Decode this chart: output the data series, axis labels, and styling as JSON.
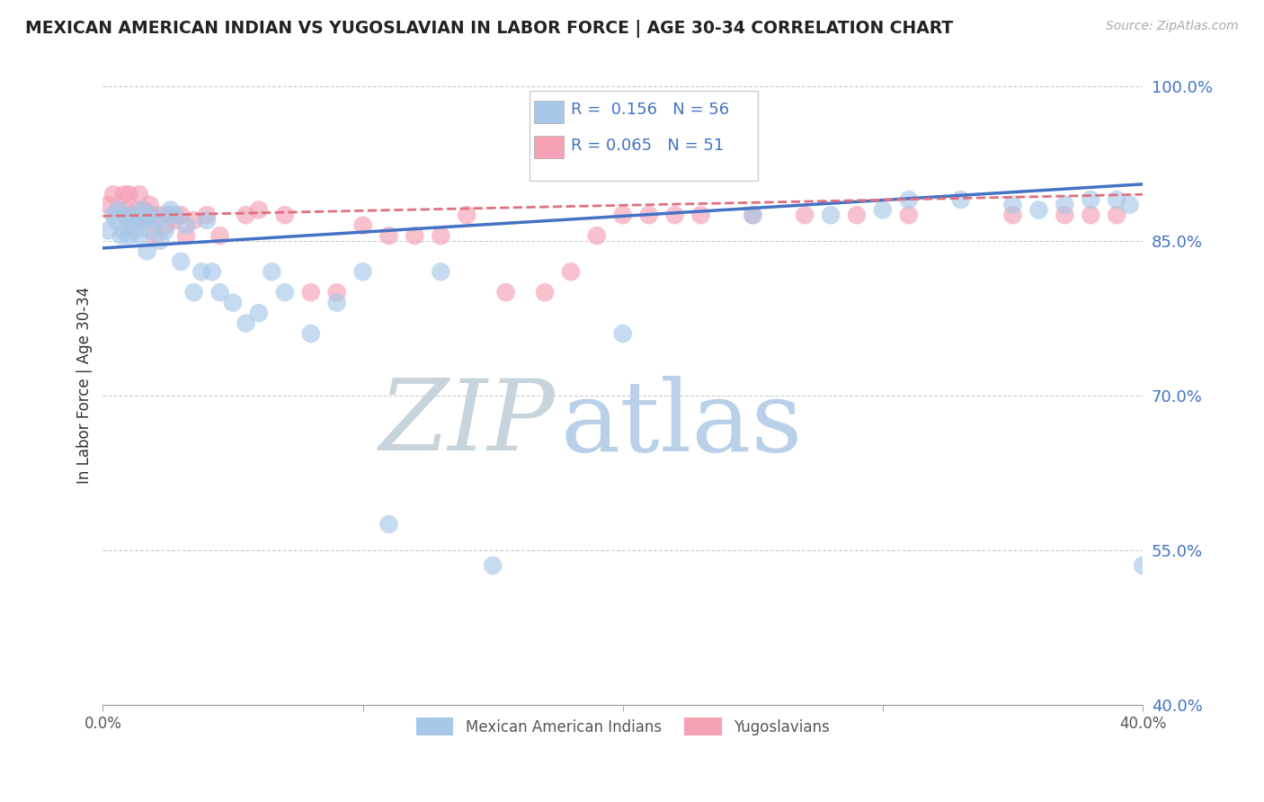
{
  "title": "MEXICAN AMERICAN INDIAN VS YUGOSLAVIAN IN LABOR FORCE | AGE 30-34 CORRELATION CHART",
  "source": "Source: ZipAtlas.com",
  "ylabel": "In Labor Force | Age 30-34",
  "xlim": [
    0.0,
    0.4
  ],
  "ylim": [
    0.4,
    1.02
  ],
  "yticks": [
    0.4,
    0.55,
    0.7,
    0.85,
    1.0
  ],
  "ytick_labels": [
    "40.0%",
    "55.0%",
    "70.0%",
    "85.0%",
    "100.0%"
  ],
  "xticks": [
    0.0,
    0.1,
    0.2,
    0.3,
    0.4
  ],
  "xtick_labels": [
    "0.0%",
    "",
    "",
    "",
    "40.0%"
  ],
  "blue_color": "#a8c8e8",
  "pink_color": "#f4a0b5",
  "trend_blue": "#4472c4",
  "trend_pink": "#e07080",
  "R_blue": 0.156,
  "N_blue": 56,
  "R_pink": 0.065,
  "N_pink": 51,
  "watermark_zip": "ZIP",
  "watermark_atlas": "atlas",
  "watermark_color_zip": "#c8d8e8",
  "watermark_color_atlas": "#b8d4f0",
  "blue_x": [
    0.002,
    0.004,
    0.005,
    0.006,
    0.007,
    0.008,
    0.009,
    0.01,
    0.01,
    0.011,
    0.012,
    0.013,
    0.014,
    0.015,
    0.015,
    0.016,
    0.017,
    0.018,
    0.019,
    0.02,
    0.022,
    0.024,
    0.025,
    0.026,
    0.028,
    0.03,
    0.032,
    0.035,
    0.038,
    0.04,
    0.042,
    0.045,
    0.05,
    0.055,
    0.06,
    0.065,
    0.07,
    0.08,
    0.09,
    0.1,
    0.11,
    0.13,
    0.15,
    0.2,
    0.25,
    0.28,
    0.3,
    0.31,
    0.33,
    0.35,
    0.36,
    0.37,
    0.38,
    0.39,
    0.395,
    0.4
  ],
  "blue_y": [
    0.86,
    0.875,
    0.87,
    0.88,
    0.855,
    0.86,
    0.875,
    0.87,
    0.855,
    0.87,
    0.86,
    0.875,
    0.855,
    0.87,
    0.88,
    0.875,
    0.84,
    0.86,
    0.875,
    0.87,
    0.85,
    0.86,
    0.875,
    0.88,
    0.875,
    0.83,
    0.865,
    0.8,
    0.82,
    0.87,
    0.82,
    0.8,
    0.79,
    0.77,
    0.78,
    0.82,
    0.8,
    0.76,
    0.79,
    0.82,
    0.575,
    0.82,
    0.535,
    0.76,
    0.875,
    0.875,
    0.88,
    0.89,
    0.89,
    0.885,
    0.88,
    0.885,
    0.89,
    0.89,
    0.885,
    0.535
  ],
  "pink_x": [
    0.002,
    0.004,
    0.006,
    0.008,
    0.009,
    0.01,
    0.011,
    0.012,
    0.013,
    0.014,
    0.015,
    0.016,
    0.017,
    0.018,
    0.019,
    0.02,
    0.022,
    0.024,
    0.025,
    0.028,
    0.03,
    0.032,
    0.035,
    0.04,
    0.045,
    0.055,
    0.06,
    0.07,
    0.08,
    0.09,
    0.1,
    0.11,
    0.12,
    0.13,
    0.14,
    0.155,
    0.17,
    0.18,
    0.19,
    0.2,
    0.21,
    0.22,
    0.23,
    0.25,
    0.27,
    0.29,
    0.31,
    0.35,
    0.37,
    0.38,
    0.39
  ],
  "pink_y": [
    0.885,
    0.895,
    0.88,
    0.895,
    0.88,
    0.895,
    0.875,
    0.87,
    0.88,
    0.895,
    0.875,
    0.88,
    0.87,
    0.885,
    0.875,
    0.855,
    0.875,
    0.865,
    0.875,
    0.87,
    0.875,
    0.855,
    0.87,
    0.875,
    0.855,
    0.875,
    0.88,
    0.875,
    0.8,
    0.8,
    0.865,
    0.855,
    0.855,
    0.855,
    0.875,
    0.8,
    0.8,
    0.82,
    0.855,
    0.875,
    0.875,
    0.875,
    0.875,
    0.875,
    0.875,
    0.875,
    0.875,
    0.875,
    0.875,
    0.875,
    0.875
  ]
}
